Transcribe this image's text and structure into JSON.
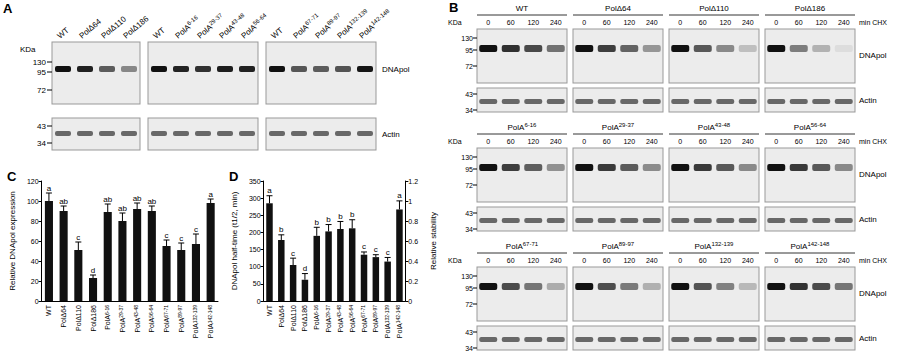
{
  "blots": {
    "A": {
      "title": "A",
      "kda_label": "KDa",
      "markers_top": [
        130,
        95,
        72
      ],
      "markers_bottom": [
        43,
        34
      ],
      "rows": [
        "DNApol",
        "Actin"
      ],
      "groups": [
        [
          "WT",
          "PolΔ64",
          "PolΔ110",
          "PolΔ186"
        ],
        [
          "WT",
          "PolA6-16",
          "PolA29-37",
          "PolA43-48",
          "PolA56-64"
        ],
        [
          "WT",
          "PolA67-71",
          "PolA89-97",
          "PolA132-139",
          "PolA142-148"
        ]
      ]
    },
    "B": {
      "title": "B",
      "kda_label": "KDa",
      "time_unit": "min CHX",
      "times": [
        0,
        60,
        120,
        240
      ],
      "markers_top": [
        130,
        95,
        72
      ],
      "markers_bottom": [
        43,
        34
      ],
      "rows": [
        "DNApol",
        "Actin"
      ],
      "blocks": [
        "WT",
        "PolΔ64",
        "PolΔ110",
        "PolΔ186",
        "PolA6-16",
        "PolA29-37",
        "PolA43-48",
        "PolA56-64",
        "PolA67-71",
        "PolA89-97",
        "PolA132-139",
        "PolA142-148"
      ]
    }
  },
  "chart_data": [
    {
      "title": "C",
      "type": "bar",
      "y_label": "Relative DNApol expression",
      "categories": [
        "WT",
        "PolΔ64",
        "PolΔ110",
        "PolΔ186",
        "PolA6-16",
        "PolA29-37",
        "PolA43-48",
        "PolA56-64",
        "PolA67-71",
        "PolA89-97",
        "PolA132-139",
        "PolA142-148"
      ],
      "values": [
        100,
        90,
        51,
        23,
        89,
        80,
        92,
        90,
        55,
        51,
        57,
        98
      ],
      "errors": [
        8,
        5,
        8,
        3,
        8,
        8,
        6,
        5,
        6,
        7,
        10,
        4
      ],
      "letters": [
        "a",
        "ab",
        "c",
        "d",
        "ab",
        "ab",
        "ab",
        "ab",
        "c",
        "c",
        "c",
        "a"
      ],
      "color": "#111111",
      "ylim": [
        0,
        120
      ],
      "yticks": [
        0,
        20,
        40,
        60,
        80,
        100,
        120
      ],
      "grid": false
    },
    {
      "title": "D",
      "type": "bar",
      "y_label": "DNApol half-time (t1/2, min)",
      "y2_label": "Relative stability",
      "categories": [
        "WT",
        "PolΔ64",
        "PolΔ110",
        "PolΔ186",
        "PolA6-16",
        "PolA29-37",
        "PolA43-48",
        "PolA56-64",
        "PolA67-71",
        "PolA89-97",
        "PolA132-139",
        "PolA142-148"
      ],
      "values": [
        285,
        178,
        105,
        62,
        190,
        203,
        210,
        212,
        135,
        128,
        115,
        267
      ],
      "errors": [
        22,
        15,
        20,
        18,
        25,
        20,
        22,
        25,
        8,
        7,
        12,
        25
      ],
      "letters": [
        "a",
        "b",
        "c",
        "d",
        "b",
        "b",
        "b",
        "b",
        "c",
        "c",
        "c",
        "a"
      ],
      "color": "#111111",
      "ylim": [
        0,
        350
      ],
      "yticks": [
        0,
        50,
        100,
        150,
        200,
        250,
        300,
        350
      ],
      "y2lim": [
        0,
        1.2
      ],
      "y2ticks": [
        0,
        0.2,
        0.4,
        0.6,
        0.8,
        1,
        1.2
      ],
      "grid": false
    }
  ]
}
